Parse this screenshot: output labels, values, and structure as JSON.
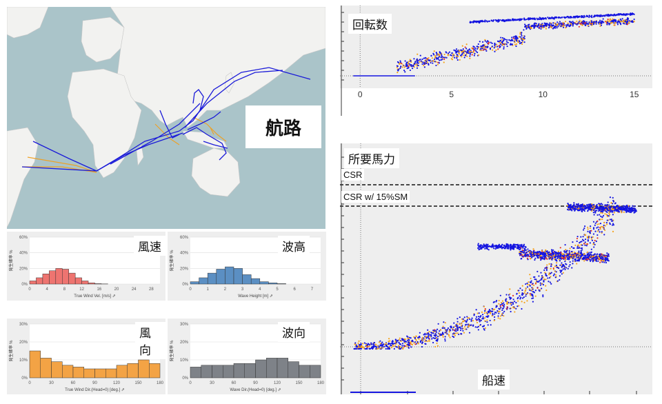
{
  "route_map": {
    "label": "航路"
  },
  "chart_data": [
    {
      "type": "histogram",
      "title": "風速",
      "xlabel": "True Wind Vel. [m/s] ⇗",
      "ylabel": "発生確率 %",
      "x_ticks": [
        "0",
        "4",
        "8",
        "12",
        "16",
        "20",
        "24",
        "28"
      ],
      "y_ticks": [
        "0%",
        "20%",
        "40%",
        "60%"
      ],
      "ylim": [
        0,
        60
      ],
      "xlim": [
        0,
        30
      ],
      "bin_width": 1.5,
      "bin_starts": [
        0,
        1.5,
        3,
        4.5,
        6,
        7.5,
        9,
        10.5,
        12,
        13.5,
        15,
        16.5
      ],
      "values": [
        4,
        8,
        13,
        17,
        20,
        19,
        14,
        8,
        4,
        1.5,
        0.5,
        0.2
      ],
      "color": "#ee7470"
    },
    {
      "type": "histogram",
      "title": "波高",
      "xlabel": "Wave Height [m] ⇗",
      "ylabel": "発生確率 %",
      "x_ticks": [
        "0",
        "1",
        "2",
        "3",
        "4",
        "5",
        "6",
        "7"
      ],
      "y_ticks": [
        "0%",
        "20%",
        "40%",
        "60%"
      ],
      "ylim": [
        0,
        60
      ],
      "xlim": [
        0,
        7.5
      ],
      "bin_width": 0.5,
      "bin_starts": [
        0,
        0.5,
        1,
        1.5,
        2,
        2.5,
        3,
        3.5,
        4,
        4.5,
        5
      ],
      "values": [
        3,
        8,
        14,
        19,
        22,
        20,
        12,
        7,
        3,
        1.5,
        0.5
      ],
      "color": "#5b8fc3"
    },
    {
      "type": "histogram",
      "title": "風向",
      "xlabel": "True Wind Dir.(Head=0) [deg.] ⇗",
      "ylabel": "発生確率 %",
      "x_ticks": [
        "0",
        "30",
        "60",
        "90",
        "120",
        "150",
        "180"
      ],
      "y_ticks": [
        "0%",
        "10%",
        "20%",
        "30%"
      ],
      "ylim": [
        0,
        30
      ],
      "xlim": [
        0,
        180
      ],
      "bin_width": 15,
      "bin_starts": [
        0,
        15,
        30,
        45,
        60,
        75,
        90,
        105,
        120,
        135,
        150,
        165
      ],
      "values": [
        15,
        11,
        9,
        7,
        6,
        5,
        5,
        5,
        7,
        8,
        10,
        8
      ],
      "color": "#f3a345"
    },
    {
      "type": "histogram",
      "title": "波向",
      "xlabel": "Wave Dir.(Head=0) [deg.] ⇗",
      "ylabel": "発生確率 %",
      "x_ticks": [
        "0",
        "30",
        "60",
        "90",
        "120",
        "150",
        "180"
      ],
      "y_ticks": [
        "0%",
        "10%",
        "20%",
        "30%"
      ],
      "ylim": [
        0,
        30
      ],
      "xlim": [
        0,
        180
      ],
      "bin_width": 15,
      "bin_starts": [
        0,
        15,
        30,
        45,
        60,
        75,
        90,
        105,
        120,
        135,
        150,
        165
      ],
      "values": [
        6,
        7,
        7,
        7,
        8,
        8,
        10,
        11,
        11,
        9,
        7,
        7
      ],
      "color": "#7e8288"
    },
    {
      "type": "scatter",
      "title": "回転数",
      "x_ticks": [
        "0",
        "5",
        "10",
        "15"
      ],
      "xlim": [
        -0.5,
        15.5
      ],
      "series": [
        {
          "color": "#1515e0"
        },
        {
          "color": "#f5a31a"
        },
        {
          "color": "#e63020"
        }
      ]
    },
    {
      "type": "scatter",
      "title": "所要馬力",
      "xlabel": "船速",
      "reference_lines": [
        "CSR",
        "CSR w/ 15%SM"
      ],
      "series": [
        {
          "color": "#1515e0"
        },
        {
          "color": "#f5a31a"
        },
        {
          "color": "#e63020"
        }
      ]
    }
  ]
}
